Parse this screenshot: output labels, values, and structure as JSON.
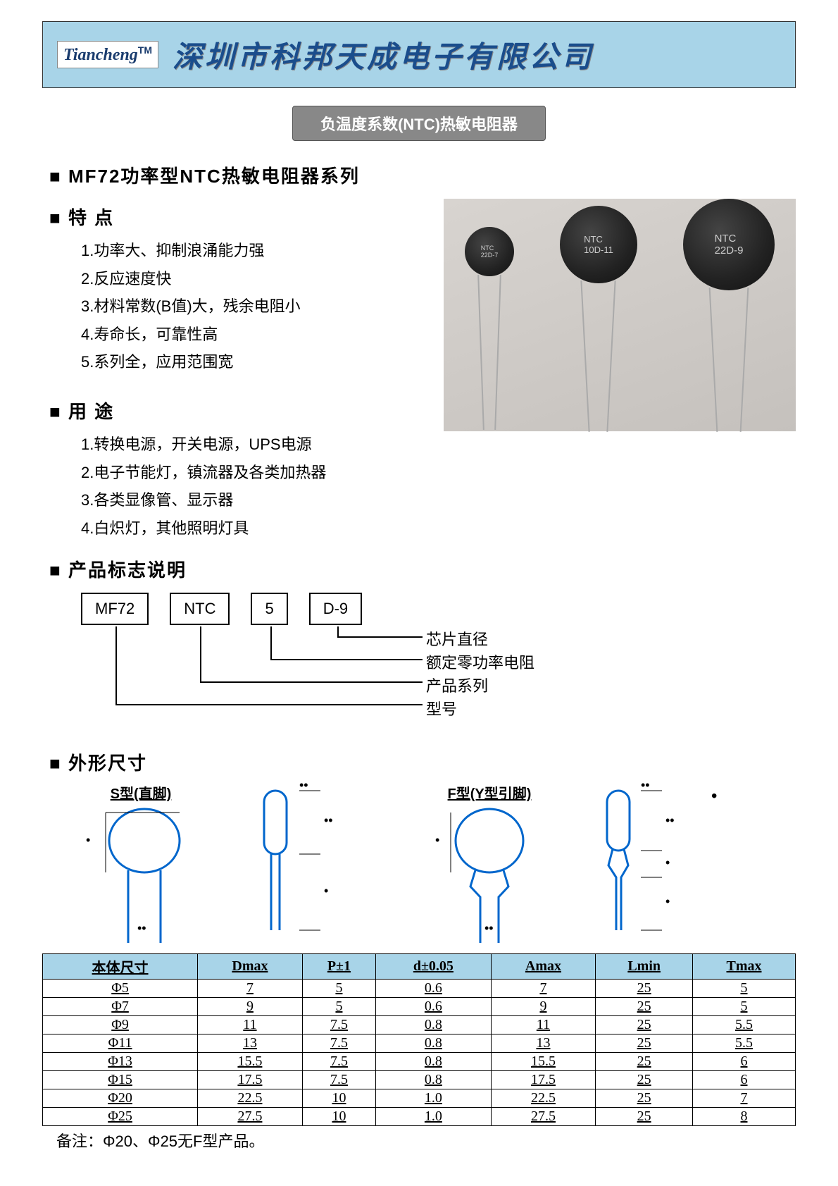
{
  "header": {
    "logo_text": "Tiancheng",
    "logo_tm": "TM",
    "company_name": "深圳市科邦天成电子有限公司"
  },
  "subtitle": "负温度系数(NTC)热敏电阻器",
  "series_heading": "MF72功率型NTC热敏电阻器系列",
  "features": {
    "heading": "特 点",
    "items": [
      "1.功率大、抑制浪涌能力强",
      "2.反应速度快",
      "3.材料常数(B值)大，残余电阻小",
      "4.寿命长，可靠性高",
      "5.系列全，应用范围宽"
    ]
  },
  "uses": {
    "heading": "用 途",
    "items": [
      "1.转换电源，开关电源，UPS电源",
      "2.电子节能灯，镇流器及各类加热器",
      "3.各类显像管、显示器",
      "4.白炽灯，其他照明灯具"
    ]
  },
  "marking": {
    "heading": "产品标志说明",
    "boxes": [
      "MF72",
      "NTC",
      "5",
      "D-9"
    ],
    "labels": [
      "芯片直径",
      "额定零功率电阻",
      "产品系列",
      "型号"
    ]
  },
  "dimensions": {
    "heading": "外形尺寸",
    "s_type": "S型(直脚)",
    "f_type": "F型(Y型引脚)"
  },
  "table": {
    "headers": [
      "本体尺寸",
      "Dmax",
      "P±1",
      "d±0.05",
      "Amax",
      "Lmin",
      "Tmax"
    ],
    "rows": [
      [
        "Φ5",
        "7",
        "5",
        "0.6",
        "7",
        "25",
        "5"
      ],
      [
        "Φ7",
        "9",
        "5",
        "0.6",
        "9",
        "25",
        "5"
      ],
      [
        "Φ9",
        "11",
        "7.5",
        "0.8",
        "11",
        "25",
        "5.5"
      ],
      [
        "Φ11",
        "13",
        "7.5",
        "0.8",
        "13",
        "25",
        "5.5"
      ],
      [
        "Φ13",
        "15.5",
        "7.5",
        "0.8",
        "15.5",
        "25",
        "6"
      ],
      [
        "Φ15",
        "17.5",
        "7.5",
        "0.8",
        "17.5",
        "25",
        "6"
      ],
      [
        "Φ20",
        "22.5",
        "10",
        "1.0",
        "22.5",
        "25",
        "7"
      ],
      [
        "Φ25",
        "27.5",
        "10",
        "1.0",
        "27.5",
        "25",
        "8"
      ]
    ],
    "note": "备注：Φ20、Φ25无F型产品。"
  },
  "colors": {
    "header_bg": "#a8d4e8",
    "table_header_bg": "#a8d4e8",
    "badge_bg": "#888888"
  }
}
